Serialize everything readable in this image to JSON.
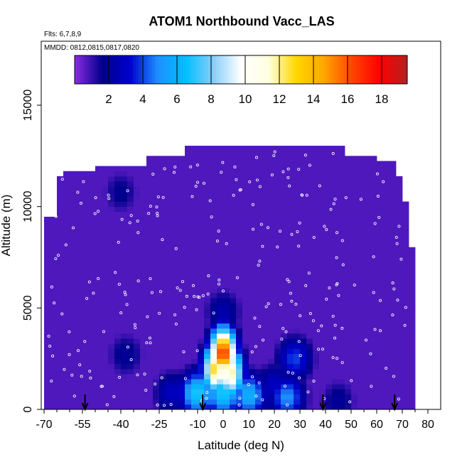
{
  "chart_data": {
    "type": "heatmap",
    "title": "ATOM1 Northbound Vacc_LAS",
    "notes": [
      "Flts: 6,7,8,9",
      "MMDD: 0812,0815,0817,0820"
    ],
    "xlabel": "Latitude (deg N)",
    "ylabel": "Altitude (m)",
    "xlim": [
      -70,
      80
    ],
    "ylim": [
      0,
      18000
    ],
    "xticks": [
      "-70",
      "-55",
      "-40",
      "-25",
      "-10",
      "0",
      "10",
      "20",
      "30",
      "40",
      "50",
      "60",
      "70",
      "80"
    ],
    "xtick_values": [
      -70,
      -55,
      -40,
      -25,
      -10,
      0,
      10,
      20,
      30,
      40,
      50,
      60,
      70,
      80
    ],
    "yticks": [
      "0",
      "5000",
      "10000",
      "15000"
    ],
    "ytick_values": [
      0,
      5000,
      10000,
      15000
    ],
    "colorbar": {
      "range": [
        0,
        19.5
      ],
      "ticks": [
        "2",
        "4",
        "6",
        "8",
        "10",
        "12",
        "14",
        "16",
        "18"
      ],
      "tick_values": [
        2,
        4,
        6,
        8,
        10,
        12,
        14,
        16,
        18
      ],
      "colors": [
        "#8a2be2",
        "#00008b",
        "#0000cd",
        "#1e90ff",
        "#00bfff",
        "#87cefa",
        "#ffffff",
        "#ffffe0",
        "#ffd700",
        "#ffa500",
        "#ff4500",
        "#ff0000",
        "#b22222"
      ]
    },
    "background_value": 0.7,
    "features": [
      {
        "lat": 0,
        "alt": 2800,
        "value": 17
      },
      {
        "lat": -3,
        "alt": 2000,
        "value": 13
      },
      {
        "lat": 3,
        "alt": 1800,
        "value": 12
      },
      {
        "lat": 0,
        "alt": 800,
        "value": 7
      },
      {
        "lat": -10,
        "alt": 800,
        "value": 7
      },
      {
        "lat": 10,
        "alt": 700,
        "value": 6
      },
      {
        "lat": 25,
        "alt": 600,
        "value": 5
      },
      {
        "lat": 28,
        "alt": 2500,
        "value": 4
      },
      {
        "lat": 20,
        "alt": 1200,
        "value": 3
      },
      {
        "lat": -20,
        "alt": 800,
        "value": 3
      },
      {
        "lat": -38,
        "alt": 2700,
        "value": 2
      },
      {
        "lat": 45,
        "alt": 400,
        "value": 2
      },
      {
        "lat": -40,
        "alt": 10700,
        "value": 1.8
      },
      {
        "lat": 0,
        "alt": 4800,
        "value": 2.5
      }
    ],
    "arrows": [
      -54,
      -8,
      39,
      67
    ]
  }
}
